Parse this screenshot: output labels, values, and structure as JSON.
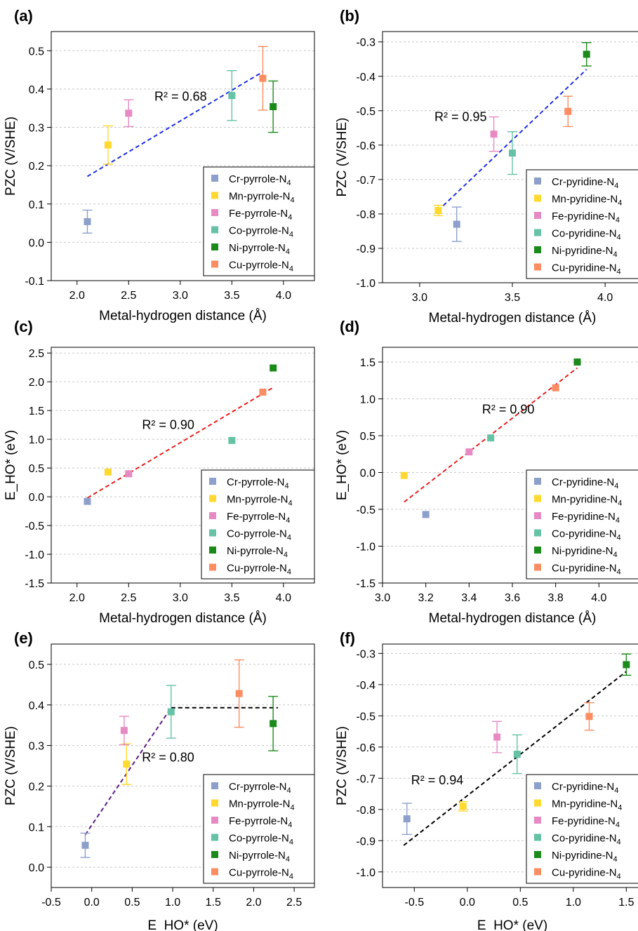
{
  "colors": {
    "Cr": "#8DA0CB",
    "Mn": "#FFD92F",
    "Fe": "#E78AC3",
    "Co": "#66C2A5",
    "Ni": "#1A8A1A",
    "Cu": "#FC8D62"
  },
  "chart_data": [
    {
      "id": "a",
      "panel_label": "(a)",
      "type": "scatter",
      "xlabel": "Metal-hydrogen distance (Å)",
      "ylabel": "PZC (V/SHE)",
      "xlim": [
        1.75,
        4.3
      ],
      "ylim": [
        -0.1,
        0.55
      ],
      "xticks": [
        "2.0",
        "2.5",
        "3.0",
        "3.5",
        "4.0"
      ],
      "yticks": [
        "-0.1",
        "0.0",
        "0.1",
        "0.2",
        "0.3",
        "0.4",
        "0.5"
      ],
      "grid": "horizontal dashed",
      "legend_placement": "bottom-right",
      "series": [
        {
          "name": "Cr-pyrrole-N",
          "color_key": "Cr",
          "x": 2.1,
          "y": 0.054,
          "err": 0.03
        },
        {
          "name": "Mn-pyrrole-N",
          "color_key": "Mn",
          "x": 2.3,
          "y": 0.254,
          "err": 0.05
        },
        {
          "name": "Fe-pyrrole-N",
          "color_key": "Fe",
          "x": 2.5,
          "y": 0.337,
          "err": 0.035
        },
        {
          "name": "Co-pyrrole-N",
          "color_key": "Co",
          "x": 3.5,
          "y": 0.383,
          "err": 0.065
        },
        {
          "name": "Ni-pyrrole-N",
          "color_key": "Ni",
          "x": 3.9,
          "y": 0.354,
          "err": 0.067
        },
        {
          "name": "Cu-pyrrole-N",
          "color_key": "Cu",
          "x": 3.8,
          "y": 0.428,
          "err": 0.083
        }
      ],
      "fit_lines": [
        {
          "color": "#1F2FE0",
          "points": [
            [
              2.1,
              0.172
            ],
            [
              3.8,
              0.445
            ]
          ]
        }
      ],
      "annotation": {
        "text": "R² = 0.68",
        "x": 2.75,
        "y": 0.37
      }
    },
    {
      "id": "b",
      "panel_label": "(b)",
      "type": "scatter",
      "xlabel": "Metal-hydrogen distance (Å)",
      "ylabel": "PZC (V/SHE)",
      "xlim": [
        2.8,
        4.2
      ],
      "ylim": [
        -1.0,
        -0.27
      ],
      "xticks": [
        "3.0",
        "3.5",
        "4.0"
      ],
      "yticks": [
        "-1.0",
        "-0.9",
        "-0.8",
        "-0.7",
        "-0.6",
        "-0.5",
        "-0.4",
        "-0.3"
      ],
      "grid": "horizontal dashed",
      "legend_placement": "bottom-right",
      "series": [
        {
          "name": "Cr-pyridine-N",
          "color_key": "Cr",
          "x": 3.2,
          "y": -0.83,
          "err": 0.05
        },
        {
          "name": "Mn-pyridine-N",
          "color_key": "Mn",
          "x": 3.1,
          "y": -0.79,
          "err": 0.015
        },
        {
          "name": "Fe-pyridine-N",
          "color_key": "Fe",
          "x": 3.4,
          "y": -0.568,
          "err": 0.05
        },
        {
          "name": "Co-pyridine-N",
          "color_key": "Co",
          "x": 3.5,
          "y": -0.623,
          "err": 0.062
        },
        {
          "name": "Ni-pyridine-N",
          "color_key": "Ni",
          "x": 3.9,
          "y": -0.336,
          "err": 0.034
        },
        {
          "name": "Cu-pyridine-N",
          "color_key": "Cu",
          "x": 3.8,
          "y": -0.502,
          "err": 0.044
        }
      ],
      "fit_lines": [
        {
          "color": "#1F2FE0",
          "points": [
            [
              3.1,
              -0.79
            ],
            [
              3.9,
              -0.38
            ]
          ]
        }
      ],
      "annotation": {
        "text": "R² = 0.95",
        "x": 3.08,
        "y": -0.53
      }
    },
    {
      "id": "c",
      "panel_label": "(c)",
      "type": "scatter",
      "xlabel": "Metal-hydrogen distance (Å)",
      "ylabel": "E_HO* (eV)",
      "xlim": [
        1.75,
        4.3
      ],
      "ylim": [
        -1.5,
        2.6
      ],
      "xticks": [
        "2.0",
        "2.5",
        "3.0",
        "3.5",
        "4.0"
      ],
      "yticks": [
        "-1.5",
        "-1.0",
        "-0.5",
        "0.0",
        "0.5",
        "1.0",
        "1.5",
        "2.0",
        "2.5"
      ],
      "grid": "horizontal dashed",
      "legend_placement": "bottom-right",
      "series": [
        {
          "name": "Cr-pyrrole-N",
          "color_key": "Cr",
          "x": 2.1,
          "y": -0.08
        },
        {
          "name": "Mn-pyrrole-N",
          "color_key": "Mn",
          "x": 2.3,
          "y": 0.43
        },
        {
          "name": "Fe-pyrrole-N",
          "color_key": "Fe",
          "x": 2.5,
          "y": 0.4
        },
        {
          "name": "Co-pyrrole-N",
          "color_key": "Co",
          "x": 3.5,
          "y": 0.98
        },
        {
          "name": "Ni-pyrrole-N",
          "color_key": "Ni",
          "x": 3.9,
          "y": 2.24
        },
        {
          "name": "Cu-pyrrole-N",
          "color_key": "Cu",
          "x": 3.8,
          "y": 1.82
        }
      ],
      "fit_lines": [
        {
          "color": "#E82020",
          "points": [
            [
              2.1,
              -0.02
            ],
            [
              3.9,
              1.9
            ]
          ]
        }
      ],
      "annotation": {
        "text": "R² = 0.90",
        "x": 2.63,
        "y": 1.18
      }
    },
    {
      "id": "d",
      "panel_label": "(d)",
      "type": "scatter",
      "xlabel": "Metal-hydrogen distance (Å)",
      "ylabel": "E_HO* (eV)",
      "xlim": [
        3.0,
        4.2
      ],
      "ylim": [
        -1.5,
        1.7
      ],
      "xticks": [
        "3.0",
        "3.2",
        "3.4",
        "3.6",
        "3.8",
        "4.0"
      ],
      "yticks": [
        "-1.5",
        "-1.0",
        "-0.5",
        "0.0",
        "0.5",
        "1.0",
        "1.5"
      ],
      "grid": "horizontal dashed",
      "legend_placement": "bottom-right",
      "series": [
        {
          "name": "Cr-pyridine-N",
          "color_key": "Cr",
          "x": 3.2,
          "y": -0.57
        },
        {
          "name": "Mn-pyridine-N",
          "color_key": "Mn",
          "x": 3.1,
          "y": -0.04
        },
        {
          "name": "Fe-pyridine-N",
          "color_key": "Fe",
          "x": 3.4,
          "y": 0.28
        },
        {
          "name": "Co-pyridine-N",
          "color_key": "Co",
          "x": 3.5,
          "y": 0.47
        },
        {
          "name": "Ni-pyridine-N",
          "color_key": "Ni",
          "x": 3.9,
          "y": 1.5
        },
        {
          "name": "Cu-pyridine-N",
          "color_key": "Cu",
          "x": 3.8,
          "y": 1.15
        }
      ],
      "fit_lines": [
        {
          "color": "#E82020",
          "points": [
            [
              3.1,
              -0.4
            ],
            [
              3.9,
              1.42
            ]
          ]
        }
      ],
      "annotation": {
        "text": "R² = 0.90",
        "x": 3.46,
        "y": 0.8
      }
    },
    {
      "id": "e",
      "panel_label": "(e)",
      "type": "scatter",
      "xlabel": "E_HO* (eV)",
      "ylabel": "PZC (V/SHE)",
      "xlim": [
        -0.5,
        2.75
      ],
      "ylim": [
        -0.05,
        0.55
      ],
      "xticks": [
        "-0.5",
        "0.0",
        "0.5",
        "1.0",
        "1.5",
        "2.0",
        "2.5"
      ],
      "yticks": [
        "0.0",
        "0.1",
        "0.2",
        "0.3",
        "0.4",
        "0.5"
      ],
      "grid": "horizontal dashed",
      "legend_placement": "bottom-right",
      "series": [
        {
          "name": "Cr-pyrrole-N",
          "color_key": "Cr",
          "x": -0.08,
          "y": 0.054,
          "err": 0.03
        },
        {
          "name": "Mn-pyrrole-N",
          "color_key": "Mn",
          "x": 0.43,
          "y": 0.254,
          "err": 0.05
        },
        {
          "name": "Fe-pyrrole-N",
          "color_key": "Fe",
          "x": 0.4,
          "y": 0.337,
          "err": 0.035
        },
        {
          "name": "Co-pyrrole-N",
          "color_key": "Co",
          "x": 0.98,
          "y": 0.383,
          "err": 0.065
        },
        {
          "name": "Ni-pyrrole-N",
          "color_key": "Ni",
          "x": 2.24,
          "y": 0.354,
          "err": 0.067
        },
        {
          "name": "Cu-pyrrole-N",
          "color_key": "Cu",
          "x": 1.82,
          "y": 0.428,
          "err": 0.083
        }
      ],
      "fit_lines": [
        {
          "color": "#5B1E84",
          "points": [
            [
              -0.08,
              0.08
            ],
            [
              0.98,
              0.393
            ]
          ]
        },
        {
          "color": "#000000",
          "points": [
            [
              0.98,
              0.393
            ],
            [
              2.3,
              0.393
            ]
          ]
        }
      ],
      "annotation": {
        "text": "R² = 0.80",
        "x": 0.62,
        "y": 0.26
      }
    },
    {
      "id": "f",
      "panel_label": "(f)",
      "type": "scatter",
      "xlabel": "E_HO* (eV)",
      "ylabel": "PZC (V/SHE)",
      "xlim": [
        -0.8,
        1.65
      ],
      "ylim": [
        -1.05,
        -0.27
      ],
      "xticks": [
        "-0.5",
        "0.0",
        "0.5",
        "1.0",
        "1.5"
      ],
      "yticks": [
        "-1.0",
        "-0.9",
        "-0.8",
        "-0.7",
        "-0.6",
        "-0.5",
        "-0.4",
        "-0.3"
      ],
      "grid": "horizontal dashed",
      "legend_placement": "bottom-right",
      "series": [
        {
          "name": "Cr-pyridine-N",
          "color_key": "Cr",
          "x": -0.57,
          "y": -0.83,
          "err": 0.05
        },
        {
          "name": "Mn-pyridine-N",
          "color_key": "Mn",
          "x": -0.04,
          "y": -0.79,
          "err": 0.015
        },
        {
          "name": "Fe-pyridine-N",
          "color_key": "Fe",
          "x": 0.28,
          "y": -0.568,
          "err": 0.05
        },
        {
          "name": "Co-pyridine-N",
          "color_key": "Co",
          "x": 0.47,
          "y": -0.623,
          "err": 0.062
        },
        {
          "name": "Ni-pyridine-N",
          "color_key": "Ni",
          "x": 1.5,
          "y": -0.336,
          "err": 0.034
        },
        {
          "name": "Cu-pyridine-N",
          "color_key": "Cu",
          "x": 1.15,
          "y": -0.502,
          "err": 0.044
        }
      ],
      "fit_lines": [
        {
          "color": "#000000",
          "points": [
            [
              -0.6,
              -0.915
            ],
            [
              1.5,
              -0.358
            ]
          ]
        }
      ],
      "annotation": {
        "text": "R² = 0.94",
        "x": -0.53,
        "y": -0.72
      }
    }
  ]
}
